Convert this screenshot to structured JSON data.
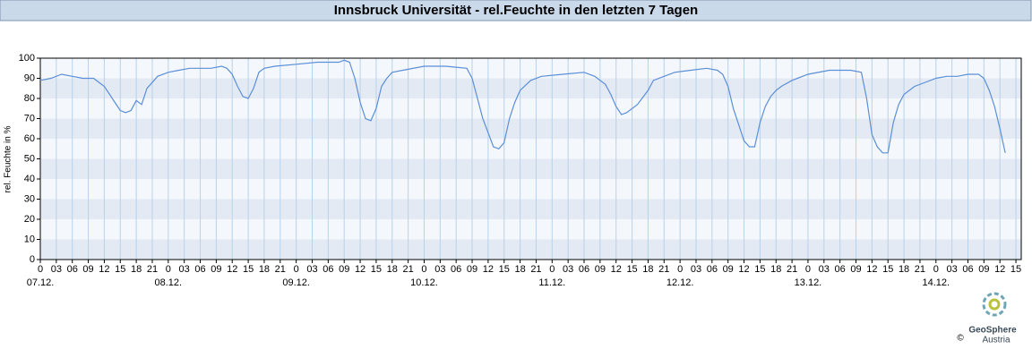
{
  "chart_data": {
    "type": "line",
    "title": "Innsbruck Universität - rel.Feuchte in den letzten 7 Tagen",
    "y_label": "rel. Feuchte in %",
    "logo": {
      "name": "GeoSphere",
      "sub": "Austria",
      "copyright": "©"
    },
    "color": "#5b8fd9",
    "x": [
      0,
      2,
      4,
      6,
      8,
      10,
      12,
      13,
      14,
      15,
      16,
      17,
      18,
      19,
      20,
      22,
      24,
      26,
      28,
      30,
      32,
      34,
      35,
      36,
      37,
      38,
      39,
      40,
      41,
      42,
      44,
      48,
      52,
      56,
      57,
      58,
      59,
      60,
      61,
      62,
      63,
      64,
      65,
      66,
      68,
      72,
      76,
      80,
      81,
      82,
      83,
      84,
      85,
      86,
      87,
      88,
      89,
      90,
      92,
      94,
      98,
      102,
      104,
      106,
      107,
      108,
      109,
      110,
      112,
      114,
      115,
      117,
      119,
      122,
      125,
      127,
      128,
      129,
      130,
      131,
      132,
      133,
      134,
      135,
      136,
      137,
      138,
      139,
      141,
      144,
      148,
      152,
      154,
      155,
      156,
      157,
      158,
      159,
      160,
      161,
      162,
      164,
      166,
      168,
      170,
      172,
      174,
      176,
      177,
      178,
      179,
      180,
      181
    ],
    "values": [
      89,
      90,
      92,
      91,
      90,
      90,
      86,
      82,
      78,
      74,
      73,
      74,
      79,
      77,
      85,
      91,
      93,
      94,
      95,
      95,
      95,
      96,
      95,
      92,
      86,
      81,
      80,
      85,
      93,
      95,
      96,
      97,
      98,
      98,
      99,
      98,
      90,
      78,
      70,
      69,
      75,
      86,
      90,
      93,
      94,
      96,
      96,
      95,
      90,
      80,
      70,
      63,
      56,
      55,
      58,
      70,
      78,
      84,
      89,
      91,
      92,
      93,
      91,
      87,
      82,
      76,
      72,
      73,
      77,
      84,
      89,
      91,
      93,
      94,
      95,
      94,
      92,
      86,
      75,
      67,
      59,
      56,
      56,
      68,
      76,
      81,
      84,
      86,
      89,
      92,
      94,
      94,
      93,
      80,
      62,
      56,
      53,
      53,
      68,
      77,
      82,
      86,
      88,
      90,
      91,
      91,
      92,
      92,
      90,
      84,
      76,
      65,
      53
    ],
    "xlim": [
      0,
      184
    ],
    "ylim": [
      0,
      100
    ],
    "yticks": [
      0,
      10,
      20,
      30,
      40,
      50,
      60,
      70,
      80,
      90,
      100
    ],
    "xticks": [
      {
        "value": 0,
        "label": "0"
      },
      {
        "value": 3,
        "label": "03"
      },
      {
        "value": 6,
        "label": "06"
      },
      {
        "value": 9,
        "label": "09"
      },
      {
        "value": 12,
        "label": "12"
      },
      {
        "value": 15,
        "label": "15"
      },
      {
        "value": 18,
        "label": "18"
      },
      {
        "value": 21,
        "label": "21"
      },
      {
        "value": 24,
        "label": "0"
      },
      {
        "value": 27,
        "label": "03"
      },
      {
        "value": 30,
        "label": "06"
      },
      {
        "value": 33,
        "label": "09"
      },
      {
        "value": 36,
        "label": "12"
      },
      {
        "value": 39,
        "label": "15"
      },
      {
        "value": 42,
        "label": "18"
      },
      {
        "value": 45,
        "label": "21"
      },
      {
        "value": 48,
        "label": "0"
      },
      {
        "value": 51,
        "label": "03"
      },
      {
        "value": 54,
        "label": "06"
      },
      {
        "value": 57,
        "label": "09"
      },
      {
        "value": 60,
        "label": "12"
      },
      {
        "value": 63,
        "label": "15"
      },
      {
        "value": 66,
        "label": "18"
      },
      {
        "value": 69,
        "label": "21"
      },
      {
        "value": 72,
        "label": "0"
      },
      {
        "value": 75,
        "label": "03"
      },
      {
        "value": 78,
        "label": "06"
      },
      {
        "value": 81,
        "label": "09"
      },
      {
        "value": 84,
        "label": "12"
      },
      {
        "value": 87,
        "label": "15"
      },
      {
        "value": 90,
        "label": "18"
      },
      {
        "value": 93,
        "label": "21"
      },
      {
        "value": 96,
        "label": "0"
      },
      {
        "value": 99,
        "label": "03"
      },
      {
        "value": 102,
        "label": "06"
      },
      {
        "value": 105,
        "label": "09"
      },
      {
        "value": 108,
        "label": "12"
      },
      {
        "value": 111,
        "label": "15"
      },
      {
        "value": 114,
        "label": "18"
      },
      {
        "value": 117,
        "label": "21"
      },
      {
        "value": 120,
        "label": "0"
      },
      {
        "value": 123,
        "label": "03"
      },
      {
        "value": 126,
        "label": "06"
      },
      {
        "value": 129,
        "label": "09"
      },
      {
        "value": 132,
        "label": "12"
      },
      {
        "value": 135,
        "label": "15"
      },
      {
        "value": 138,
        "label": "18"
      },
      {
        "value": 141,
        "label": "21"
      },
      {
        "value": 144,
        "label": "0"
      },
      {
        "value": 147,
        "label": "03"
      },
      {
        "value": 150,
        "label": "06"
      },
      {
        "value": 153,
        "label": "09"
      },
      {
        "value": 156,
        "label": "12"
      },
      {
        "value": 159,
        "label": "15"
      },
      {
        "value": 162,
        "label": "18"
      },
      {
        "value": 165,
        "label": "21"
      },
      {
        "value": 168,
        "label": "0"
      },
      {
        "value": 171,
        "label": "03"
      },
      {
        "value": 174,
        "label": "06"
      },
      {
        "value": 177,
        "label": "09"
      },
      {
        "value": 180,
        "label": "12"
      },
      {
        "value": 183,
        "label": "15"
      }
    ],
    "date_ticks": [
      {
        "value": 0,
        "label": "07.12."
      },
      {
        "value": 24,
        "label": "08.12."
      },
      {
        "value": 48,
        "label": "09.12."
      },
      {
        "value": 72,
        "label": "10.12."
      },
      {
        "value": 96,
        "label": "11.12."
      },
      {
        "value": 120,
        "label": "12.12."
      },
      {
        "value": 144,
        "label": "13.12."
      },
      {
        "value": 168,
        "label": "14.12."
      }
    ],
    "grid": true
  }
}
